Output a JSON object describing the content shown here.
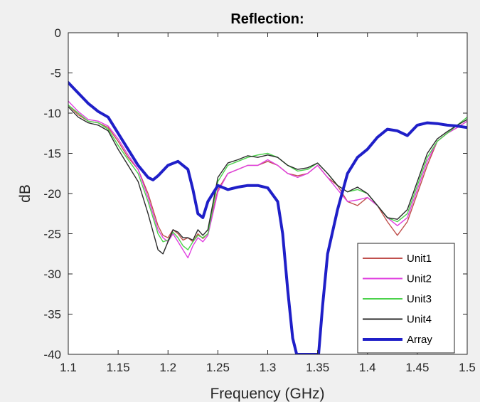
{
  "chart_data": {
    "type": "line",
    "title": "Reflection:",
    "xlabel": "Frequency (GHz)",
    "ylabel": "dB",
    "xlim": [
      1.1,
      1.5
    ],
    "ylim": [
      -40,
      0
    ],
    "xticks": [
      "1.1",
      "1.15",
      "1.2",
      "1.25",
      "1.3",
      "1.35",
      "1.4",
      "1.45",
      "1.5"
    ],
    "yticks": [
      "0",
      "-5",
      "-10",
      "-15",
      "-20",
      "-25",
      "-30",
      "-35",
      "-40"
    ],
    "grid": false,
    "legend_position": "bottom-right",
    "series": [
      {
        "name": "Unit1",
        "color": "#c0504d",
        "x": [
          1.1,
          1.11,
          1.12,
          1.13,
          1.14,
          1.15,
          1.16,
          1.17,
          1.18,
          1.19,
          1.195,
          1.2,
          1.205,
          1.21,
          1.215,
          1.22,
          1.225,
          1.23,
          1.235,
          1.24,
          1.25,
          1.26,
          1.27,
          1.28,
          1.29,
          1.3,
          1.31,
          1.32,
          1.33,
          1.34,
          1.35,
          1.36,
          1.37,
          1.38,
          1.39,
          1.4,
          1.41,
          1.42,
          1.43,
          1.44,
          1.45,
          1.46,
          1.47,
          1.48,
          1.49,
          1.5
        ],
        "y": [
          -9.0,
          -10.2,
          -11.0,
          -11.2,
          -11.8,
          -13.5,
          -15.5,
          -17.0,
          -20.0,
          -24.0,
          -25.2,
          -25.5,
          -24.5,
          -25.0,
          -25.8,
          -25.5,
          -26.0,
          -25.0,
          -25.6,
          -25.0,
          -19.5,
          -17.5,
          -17.0,
          -16.5,
          -16.5,
          -16.0,
          -16.5,
          -17.5,
          -17.8,
          -17.5,
          -16.5,
          -18.0,
          -19.0,
          -21.0,
          -21.5,
          -20.5,
          -21.5,
          -23.5,
          -25.2,
          -23.5,
          -20.0,
          -16.5,
          -13.5,
          -12.5,
          -11.8,
          -11.0
        ]
      },
      {
        "name": "Unit2",
        "color": "#e040e0",
        "x": [
          1.1,
          1.11,
          1.12,
          1.13,
          1.14,
          1.15,
          1.16,
          1.17,
          1.18,
          1.19,
          1.195,
          1.2,
          1.205,
          1.21,
          1.215,
          1.22,
          1.225,
          1.23,
          1.235,
          1.24,
          1.25,
          1.26,
          1.27,
          1.28,
          1.29,
          1.3,
          1.31,
          1.32,
          1.33,
          1.34,
          1.35,
          1.36,
          1.37,
          1.38,
          1.39,
          1.4,
          1.41,
          1.42,
          1.43,
          1.44,
          1.45,
          1.46,
          1.47,
          1.48,
          1.49,
          1.5
        ],
        "y": [
          -8.5,
          -9.8,
          -10.8,
          -11.0,
          -11.6,
          -13.2,
          -15.2,
          -17.0,
          -20.5,
          -24.5,
          -25.5,
          -26.0,
          -25.0,
          -26.0,
          -27.0,
          -28.0,
          -26.5,
          -25.5,
          -26.0,
          -25.2,
          -19.8,
          -17.5,
          -17.0,
          -16.5,
          -16.5,
          -15.8,
          -16.5,
          -17.5,
          -18.0,
          -17.5,
          -16.5,
          -18.0,
          -19.5,
          -21.0,
          -20.8,
          -20.5,
          -21.5,
          -23.0,
          -24.0,
          -23.0,
          -19.5,
          -16.0,
          -13.5,
          -12.5,
          -11.8,
          -11.0
        ]
      },
      {
        "name": "Unit3",
        "color": "#4cd24c",
        "x": [
          1.1,
          1.11,
          1.12,
          1.13,
          1.14,
          1.15,
          1.16,
          1.17,
          1.18,
          1.19,
          1.195,
          1.2,
          1.205,
          1.21,
          1.215,
          1.22,
          1.225,
          1.23,
          1.235,
          1.24,
          1.25,
          1.26,
          1.27,
          1.28,
          1.29,
          1.3,
          1.31,
          1.32,
          1.33,
          1.34,
          1.35,
          1.36,
          1.37,
          1.38,
          1.39,
          1.4,
          1.41,
          1.42,
          1.43,
          1.44,
          1.45,
          1.46,
          1.47,
          1.48,
          1.49,
          1.5
        ],
        "y": [
          -9.0,
          -10.0,
          -11.0,
          -11.2,
          -12.0,
          -14.0,
          -15.8,
          -17.5,
          -21.0,
          -25.0,
          -26.0,
          -25.8,
          -24.8,
          -25.5,
          -26.5,
          -27.0,
          -26.0,
          -25.2,
          -25.5,
          -25.0,
          -18.5,
          -16.5,
          -16.0,
          -15.5,
          -15.2,
          -15.0,
          -15.5,
          -16.5,
          -17.2,
          -17.0,
          -16.2,
          -17.5,
          -19.0,
          -19.8,
          -19.5,
          -20.0,
          -21.5,
          -23.0,
          -23.5,
          -22.5,
          -19.0,
          -15.5,
          -13.5,
          -12.5,
          -11.5,
          -10.5
        ]
      },
      {
        "name": "Unit4",
        "color": "#2b2b2b",
        "x": [
          1.1,
          1.11,
          1.12,
          1.13,
          1.14,
          1.15,
          1.16,
          1.17,
          1.18,
          1.19,
          1.195,
          1.2,
          1.205,
          1.21,
          1.215,
          1.22,
          1.225,
          1.23,
          1.235,
          1.24,
          1.25,
          1.26,
          1.27,
          1.28,
          1.29,
          1.3,
          1.31,
          1.32,
          1.33,
          1.34,
          1.35,
          1.36,
          1.37,
          1.38,
          1.39,
          1.4,
          1.41,
          1.42,
          1.43,
          1.44,
          1.45,
          1.46,
          1.47,
          1.48,
          1.49,
          1.5
        ],
        "y": [
          -9.2,
          -10.5,
          -11.2,
          -11.5,
          -12.2,
          -14.5,
          -16.5,
          -18.5,
          -22.5,
          -27.0,
          -27.5,
          -26.0,
          -24.5,
          -24.8,
          -25.5,
          -25.5,
          -25.8,
          -24.5,
          -25.2,
          -24.5,
          -18.0,
          -16.2,
          -15.8,
          -15.3,
          -15.5,
          -15.2,
          -15.5,
          -16.5,
          -17.0,
          -16.8,
          -16.2,
          -17.5,
          -19.0,
          -19.8,
          -19.2,
          -20.0,
          -21.5,
          -23.0,
          -23.2,
          -22.0,
          -18.5,
          -15.0,
          -13.2,
          -12.3,
          -11.5,
          -10.8
        ]
      },
      {
        "name": "Array",
        "color": "#1f1fc8",
        "x": [
          1.1,
          1.11,
          1.12,
          1.13,
          1.14,
          1.15,
          1.16,
          1.17,
          1.18,
          1.185,
          1.19,
          1.2,
          1.21,
          1.22,
          1.225,
          1.23,
          1.235,
          1.24,
          1.25,
          1.26,
          1.27,
          1.28,
          1.29,
          1.3,
          1.31,
          1.315,
          1.32,
          1.325,
          1.329,
          1.33,
          1.35,
          1.351,
          1.355,
          1.36,
          1.37,
          1.38,
          1.39,
          1.4,
          1.41,
          1.42,
          1.43,
          1.44,
          1.45,
          1.46,
          1.47,
          1.48,
          1.49,
          1.5
        ],
        "y": [
          -6.2,
          -7.5,
          -8.8,
          -9.8,
          -10.5,
          -12.5,
          -14.5,
          -16.5,
          -18.0,
          -18.3,
          -17.8,
          -16.5,
          -16.0,
          -17.0,
          -19.5,
          -22.5,
          -23.0,
          -21.0,
          -19.0,
          -19.5,
          -19.2,
          -19.0,
          -19.0,
          -19.3,
          -21.0,
          -25.0,
          -32.0,
          -38.0,
          -40.0,
          -40.0,
          -40.0,
          -40.0,
          -34.0,
          -27.5,
          -22.0,
          -17.5,
          -15.5,
          -14.5,
          -13.0,
          -12.0,
          -12.2,
          -12.8,
          -11.5,
          -11.2,
          -11.3,
          -11.5,
          -11.6,
          -11.8
        ]
      }
    ]
  }
}
